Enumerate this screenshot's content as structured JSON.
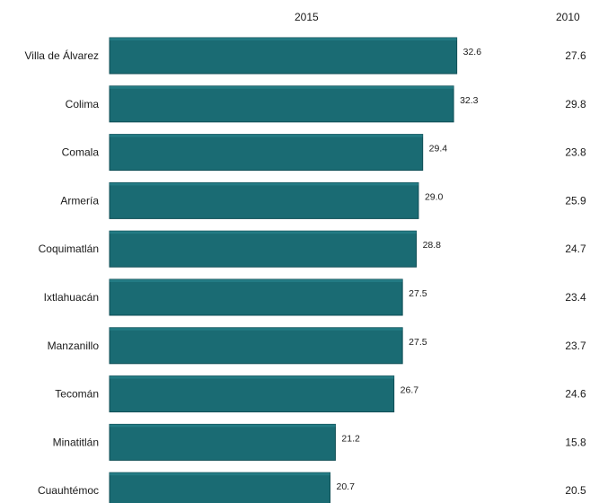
{
  "chart_data": {
    "type": "bar",
    "orientation": "horizontal",
    "categories": [
      "Villa de Álvarez",
      "Colima",
      "Comala",
      "Armería",
      "Coquimatlán",
      "Ixtlahuacán",
      "Manzanillo",
      "Tecomán",
      "Minatitlán",
      "Cuauhtémoc"
    ],
    "series": [
      {
        "name": "2015",
        "values": [
          32.6,
          32.3,
          29.4,
          29.0,
          28.8,
          27.5,
          27.5,
          26.7,
          21.2,
          20.7
        ],
        "labels": [
          "32.6",
          "32.3",
          "29.4",
          "29.0",
          "28.8",
          "27.5",
          "27.5",
          "26.7",
          "21.2",
          "20.7"
        ]
      },
      {
        "name": "2010",
        "values": [
          27.6,
          29.8,
          23.8,
          25.9,
          24.7,
          23.4,
          23.7,
          24.6,
          15.8,
          20.5
        ],
        "labels": [
          "27.6",
          "29.8",
          "23.8",
          "25.9",
          "24.7",
          "23.4",
          "23.7",
          "24.6",
          "15.8",
          "20.5"
        ]
      }
    ],
    "xlim": [
      0,
      34
    ],
    "grid": false,
    "legend": "none",
    "colors": {
      "bar": "#1a6b73",
      "bar_edge": "#0f4e55",
      "text": "#1a1a1a"
    }
  }
}
